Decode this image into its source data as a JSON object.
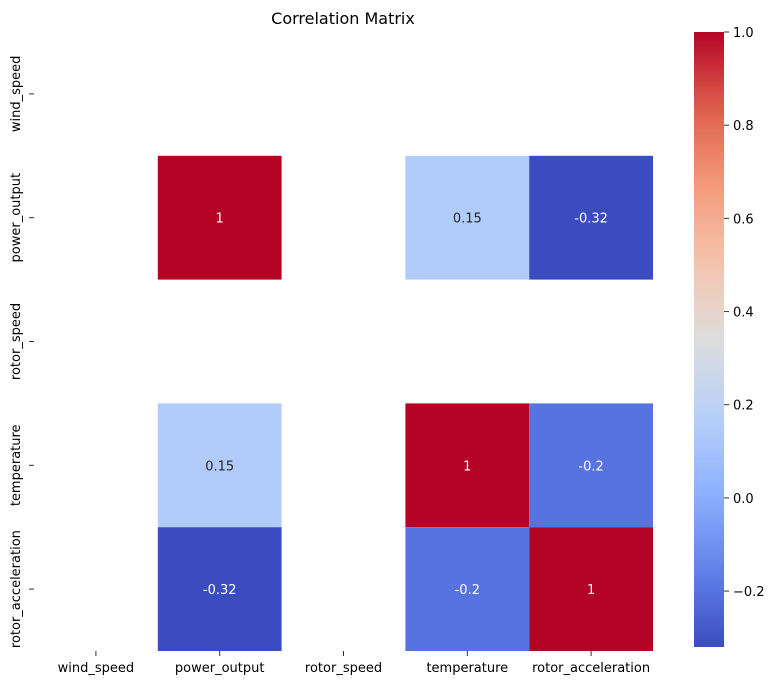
{
  "chart_data": {
    "type": "heatmap",
    "title": "Correlation Matrix",
    "xlabel": "",
    "ylabel": "",
    "row_labels": [
      "wind_speed",
      "power_output",
      "rotor_speed",
      "temperature",
      "rotor_acceleration"
    ],
    "col_labels": [
      "wind_speed",
      "power_output",
      "rotor_speed",
      "temperature",
      "rotor_acceleration"
    ],
    "values": [
      [
        null,
        null,
        null,
        null,
        null
      ],
      [
        null,
        1,
        null,
        0.15,
        -0.32
      ],
      [
        null,
        null,
        null,
        null,
        null
      ],
      [
        null,
        0.15,
        null,
        1,
        -0.2
      ],
      [
        null,
        -0.32,
        null,
        -0.2,
        1
      ]
    ],
    "annotations": [
      [
        "",
        "",
        "",
        "",
        ""
      ],
      [
        "",
        "1",
        "",
        "0.15",
        "-0.32"
      ],
      [
        "",
        "",
        "",
        "",
        ""
      ],
      [
        "",
        "0.15",
        "",
        "1",
        "-0.2"
      ],
      [
        "",
        "-0.32",
        "",
        "-0.2",
        "1"
      ]
    ],
    "colormap": "coolwarm",
    "colorbar": {
      "range": [
        -0.32,
        1
      ],
      "ticks": [
        -0.2,
        0.0,
        0.2,
        0.4,
        0.6,
        0.8,
        1.0
      ],
      "tick_labels": [
        "−0.2",
        "0.0",
        "0.2",
        "0.4",
        "0.6",
        "0.8",
        "1.0"
      ]
    },
    "grid": false,
    "legend": "colorbar-right"
  }
}
